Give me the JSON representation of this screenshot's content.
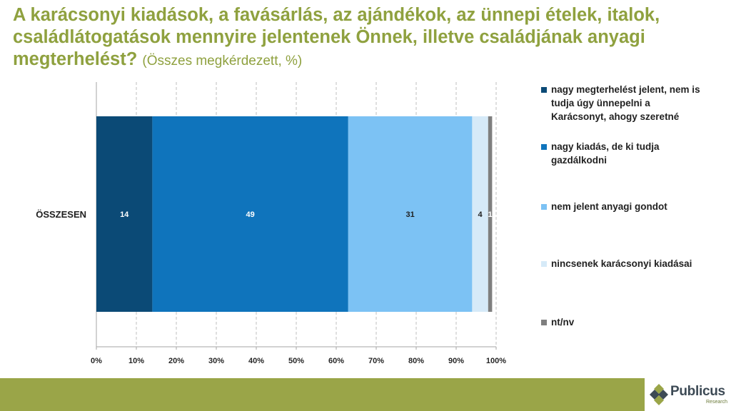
{
  "title": {
    "main": "A karácsonyi kiadások, a favásárlás, az ajándékok, az ünnepi ételek, italok, családlátogatások mennyire jelentenek Önnek, illetve családjának anyagi megterhelést?",
    "subtitle": "(Összes megkérdezett, %)"
  },
  "chart_data": {
    "type": "bar",
    "orientation": "horizontal",
    "stacked": true,
    "categories": [
      "ÖSSZESEN"
    ],
    "series": [
      {
        "name": "nagy megterhelést jelent, nem is tudja úgy ünnepelni a Karácsonyt, ahogy szeretné",
        "values": [
          14
        ],
        "color": "#0b4a76",
        "label_color": "#ffffff"
      },
      {
        "name": "nagy kiadás, de ki tudja gazdálkodni",
        "values": [
          49
        ],
        "color": "#0f74bc",
        "label_color": "#ffffff"
      },
      {
        "name": "nem jelent anyagi gondot",
        "values": [
          31
        ],
        "color": "#7cc2f4",
        "label_color": "#1f1f1f"
      },
      {
        "name": "nincsenek karácsonyi kiadásai",
        "values": [
          4
        ],
        "color": "#d6eaf8",
        "label_color": "#1f1f1f"
      },
      {
        "name": "nt/nv",
        "values": [
          1
        ],
        "color": "#7f7f7f",
        "label_color": "#ffffff"
      }
    ],
    "xlim": [
      0,
      100
    ],
    "xticks": [
      "0%",
      "10%",
      "20%",
      "30%",
      "40%",
      "50%",
      "60%",
      "70%",
      "80%",
      "90%",
      "100%"
    ],
    "grid": true,
    "legend_position": "right"
  },
  "logo": {
    "name": "Publicus",
    "tagline": "Research"
  },
  "colors": {
    "title": "#8fa13f",
    "footer": "#9aa548"
  }
}
